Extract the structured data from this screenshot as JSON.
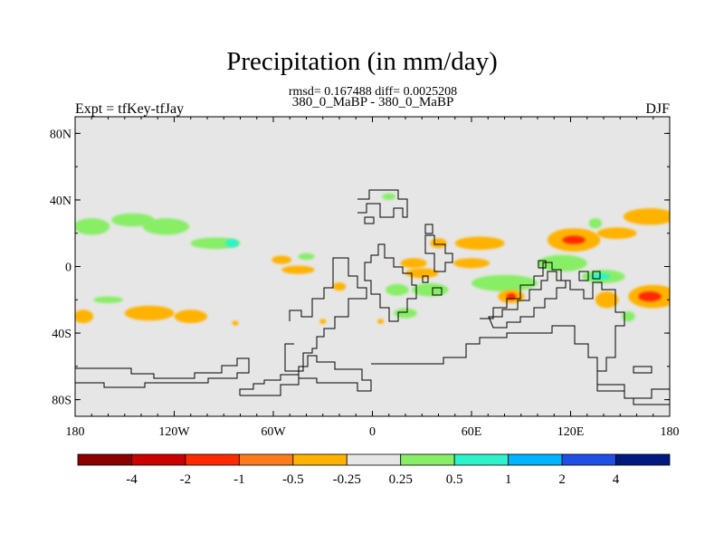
{
  "chart_data": {
    "type": "heatmap",
    "title": "Precipitation (in mm/day)",
    "stats": "rmsd= 0.167488 diff= 0.0025208",
    "subtitle": "380_0_MaBP - 380_0_MaBP",
    "left_label": "Expt = tfKey-tfJay",
    "right_label": "DJF",
    "x_ticks": [
      "180",
      "120W",
      "60W",
      "0",
      "60E",
      "120E",
      "180"
    ],
    "x_tick_values": [
      -180,
      -120,
      -60,
      0,
      60,
      120,
      180
    ],
    "y_ticks": [
      "80N",
      "40N",
      "0",
      "40S",
      "80S"
    ],
    "y_tick_values": [
      80,
      40,
      0,
      -40,
      -80
    ],
    "xlim": [
      -180,
      180
    ],
    "ylim": [
      -90,
      90
    ],
    "colorbar": {
      "colors": [
        "#8b0000",
        "#cc0000",
        "#ff2a00",
        "#ff7a1a",
        "#ffb300",
        "#e6e6e6",
        "#88ee66",
        "#2ef2cc",
        "#00b4ff",
        "#1f4fe6",
        "#001a80"
      ],
      "labels": [
        "-4",
        "-2",
        "-1",
        "-0.5",
        "-0.25",
        "0.25",
        "0.5",
        "1",
        "2",
        "4"
      ]
    },
    "background_color": "#e6e6e6",
    "anomalies": [
      {
        "lon": -170,
        "lat": 24,
        "w": 22,
        "h": 10,
        "level": 6
      },
      {
        "lon": -145,
        "lat": 28,
        "w": 26,
        "h": 8,
        "level": 6
      },
      {
        "lon": -125,
        "lat": 24,
        "w": 28,
        "h": 10,
        "level": 6
      },
      {
        "lon": -95,
        "lat": 14,
        "w": 30,
        "h": 7,
        "level": 6
      },
      {
        "lon": -85,
        "lat": 14,
        "w": 8,
        "h": 5,
        "level": 7
      },
      {
        "lon": -55,
        "lat": 4,
        "w": 12,
        "h": 5,
        "level": 4
      },
      {
        "lon": -40,
        "lat": 6,
        "w": 10,
        "h": 4,
        "level": 6
      },
      {
        "lon": -45,
        "lat": -2,
        "w": 20,
        "h": 5,
        "level": 4
      },
      {
        "lon": -175,
        "lat": -30,
        "w": 12,
        "h": 8,
        "level": 4
      },
      {
        "lon": -135,
        "lat": -28,
        "w": 30,
        "h": 9,
        "level": 4
      },
      {
        "lon": -110,
        "lat": -30,
        "w": 20,
        "h": 8,
        "level": 4
      },
      {
        "lon": -160,
        "lat": -20,
        "w": 18,
        "h": 4,
        "level": 6
      },
      {
        "lon": -20,
        "lat": -12,
        "w": 8,
        "h": 5,
        "level": 4
      },
      {
        "lon": 15,
        "lat": -14,
        "w": 14,
        "h": 7,
        "level": 6
      },
      {
        "lon": 35,
        "lat": -14,
        "w": 22,
        "h": 8,
        "level": 6
      },
      {
        "lon": 20,
        "lat": -28,
        "w": 14,
        "h": 6,
        "level": 6
      },
      {
        "lon": 30,
        "lat": -4,
        "w": 20,
        "h": 6,
        "level": 4
      },
      {
        "lon": 25,
        "lat": 2,
        "w": 16,
        "h": 6,
        "level": 4
      },
      {
        "lon": 65,
        "lat": 14,
        "w": 30,
        "h": 8,
        "level": 4
      },
      {
        "lon": 60,
        "lat": 2,
        "w": 22,
        "h": 6,
        "level": 4
      },
      {
        "lon": 40,
        "lat": 14,
        "w": 10,
        "h": 6,
        "level": 4
      },
      {
        "lon": 80,
        "lat": -10,
        "w": 40,
        "h": 10,
        "level": 6
      },
      {
        "lon": 115,
        "lat": 2,
        "w": 30,
        "h": 10,
        "level": 6
      },
      {
        "lon": 140,
        "lat": -6,
        "w": 26,
        "h": 8,
        "level": 6
      },
      {
        "lon": 138,
        "lat": -6,
        "w": 12,
        "h": 4,
        "level": 7
      },
      {
        "lon": 122,
        "lat": 16,
        "w": 32,
        "h": 14,
        "level": 4
      },
      {
        "lon": 122,
        "lat": 16,
        "w": 14,
        "h": 5,
        "level": 2
      },
      {
        "lon": 168,
        "lat": 30,
        "w": 32,
        "h": 10,
        "level": 4
      },
      {
        "lon": 148,
        "lat": 20,
        "w": 24,
        "h": 7,
        "level": 4
      },
      {
        "lon": 170,
        "lat": -18,
        "w": 30,
        "h": 14,
        "level": 4
      },
      {
        "lon": 168,
        "lat": -18,
        "w": 14,
        "h": 6,
        "level": 2
      },
      {
        "lon": 84,
        "lat": -18,
        "w": 16,
        "h": 8,
        "level": 4
      },
      {
        "lon": 84,
        "lat": -18,
        "w": 6,
        "h": 4,
        "level": 2
      },
      {
        "lon": 142,
        "lat": -20,
        "w": 14,
        "h": 10,
        "level": 4
      },
      {
        "lon": 135,
        "lat": 26,
        "w": 8,
        "h": 6,
        "level": 6
      },
      {
        "lon": 10,
        "lat": 42,
        "w": 8,
        "h": 4,
        "level": 6
      },
      {
        "lon": 155,
        "lat": -30,
        "w": 8,
        "h": 6,
        "level": 6
      },
      {
        "lon": -83,
        "lat": -34,
        "w": 4,
        "h": 3,
        "level": 4
      },
      {
        "lon": -30,
        "lat": -33,
        "w": 4,
        "h": 3,
        "level": 4
      },
      {
        "lon": 5,
        "lat": -33,
        "w": 4,
        "h": 3,
        "level": 4
      }
    ]
  }
}
